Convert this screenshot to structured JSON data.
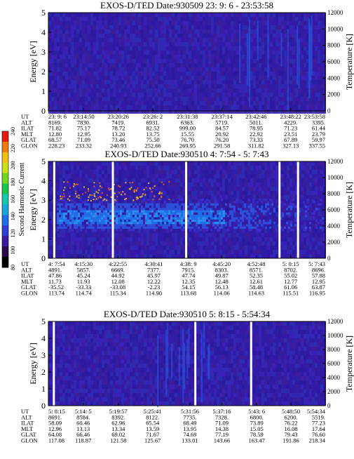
{
  "colorbar": {
    "label": "Second Harmonic Current",
    "ticks": [
      "80",
      "100",
      "120",
      "140",
      "160",
      "180",
      "200",
      "220",
      "240"
    ],
    "colors": [
      "#000000",
      "#2a0a4a",
      "#3b1a9e",
      "#2e3fd6",
      "#1f6fe8",
      "#1aa6d8",
      "#12c9b0",
      "#18c84a",
      "#6fd81e",
      "#c8e014",
      "#f2c010",
      "#f07a10",
      "#e81a10"
    ]
  },
  "chart_data": [
    {
      "type": "heatmap",
      "title": "EXOS-D/TED Date:930509 23: 9: 6 - 23:53:58",
      "ylabel": "Energy [eV]",
      "y2label": "Temperature [K]",
      "ylim": [
        0,
        5
      ],
      "y2lim": [
        0,
        12000
      ],
      "yticks": [
        "0",
        "1",
        "2",
        "3",
        "4",
        "5"
      ],
      "y2ticks": [
        "0",
        "2000",
        "4000",
        "6000",
        "8000",
        "10000",
        "12000"
      ],
      "row_labels": [
        "UT",
        "ALT",
        "ILAT",
        "MLT",
        "GLAT",
        "GLON"
      ],
      "columns": [
        [
          "23: 9: 6",
          "8169.",
          "71.82",
          "12.80",
          "68.57",
          "228.23"
        ],
        [
          "23:14:50",
          "7830.",
          "75.17",
          "12.95",
          "71.09",
          "233.32"
        ],
        [
          "23:20:26",
          "7419.",
          "78.72",
          "13.20",
          "73.46",
          "240.93"
        ],
        [
          "23:26: 2",
          "6931.",
          "82.52",
          "13.75",
          "75.50",
          "252.66"
        ],
        [
          "23:31:38",
          "6363.",
          "999.00",
          "15.55",
          "76.70",
          "269.95"
        ],
        [
          "23:37:14",
          "5719.",
          "84.57",
          "20.92",
          "76.20",
          "291.58"
        ],
        [
          "23:42:46",
          "5011.",
          "78.95",
          "22.92",
          "73.33",
          "311.82"
        ],
        [
          "23:48:22",
          "4229.",
          "71.23",
          "23.51",
          "67.89",
          "327.13"
        ],
        [
          "23:53:58",
          "3395.",
          "61.44",
          "23.79",
          "59.97",
          "337.55"
        ]
      ],
      "gaps_ut": []
    },
    {
      "type": "heatmap",
      "title": "EXOS-D/TED Date:930510 4: 7:54 - 5: 7:43",
      "ylabel": "Energy [eV]",
      "y2label": "Temperature [K]",
      "ylim": [
        0,
        5
      ],
      "y2lim": [
        0,
        12000
      ],
      "yticks": [
        "0",
        "1",
        "2",
        "3",
        "4",
        "5"
      ],
      "y2ticks": [
        "0",
        "2000",
        "4000",
        "6000",
        "8000",
        "10000",
        "12000"
      ],
      "row_labels": [
        "UT",
        "ALT",
        "ILAT",
        "MLT",
        "GLAT",
        "GLON"
      ],
      "columns": [
        [
          "4: 7:54",
          "4891.",
          "47.86",
          "11.73",
          "-35.52",
          "113.74"
        ],
        [
          "4:15:30",
          "5857.",
          "45.24",
          "11.93",
          "-33.33",
          "114.74"
        ],
        [
          "4:22:55",
          "6669.",
          "44.92",
          "12.08",
          "-33.08",
          "115.34"
        ],
        [
          "4:30:41",
          "7377.",
          "45.97",
          "12.22",
          "-2.23",
          "114.90"
        ],
        [
          "4:38: 9",
          "7915.",
          "47.74",
          "12.35",
          "54.15",
          "113.68"
        ],
        [
          "4:45:20",
          "8303.",
          "49.87",
          "12.48",
          "56.13",
          "114.06"
        ],
        [
          "4:52:48",
          "8571.",
          "52.35",
          "12.61",
          "58.48",
          "114.63"
        ],
        [
          "5: 0:15",
          "8702.",
          "55.02",
          "12.77",
          "61.06",
          "115.51"
        ],
        [
          "5: 7:43",
          "8696.",
          "57.88",
          "12.95",
          "63.87",
          "116.95"
        ]
      ],
      "gaps_ut": [
        "4: 9:10",
        "4:21:50",
        "4:37:40",
        "4:57:50",
        "5: 1:50"
      ]
    },
    {
      "type": "heatmap",
      "title": "EXOS-D/TED Date:930510 5: 8:15 - 5:54:34",
      "ylabel": "Energy [eV]",
      "y2label": "Temperature [K]",
      "ylim": [
        0,
        5
      ],
      "y2lim": [
        0,
        12000
      ],
      "yticks": [
        "0",
        "1",
        "2",
        "3",
        "4",
        "5"
      ],
      "y2ticks": [
        "0",
        "2000",
        "4000",
        "6000",
        "8000",
        "10000",
        "12000"
      ],
      "row_labels": [
        "UT",
        "ALT",
        "ILAT",
        "MLT",
        "GLAT",
        "GLON"
      ],
      "columns": [
        [
          "5: 8:15",
          "8691.",
          "58.09",
          "12.96",
          "64.08",
          "117.08"
        ],
        [
          "5:14: 5",
          "8584.",
          "60.46",
          "13.13",
          "66.46",
          "118.87"
        ],
        [
          "5:19:57",
          "8392.",
          "62.96",
          "13.34",
          "69.02",
          "121.58"
        ],
        [
          "5:25:41",
          "8122.",
          "65.54",
          "13.59",
          "71.67",
          "125.67"
        ],
        [
          "5:31:56",
          "7735.",
          "68.49",
          "13.95",
          "74.69",
          "133.01"
        ],
        [
          "5:37:16",
          "7328.",
          "71.09",
          "14.38",
          "77.19",
          "143.66"
        ],
        [
          "5:43: 6",
          "6800.",
          "73.89",
          "15.05",
          "78.59",
          "163.47"
        ],
        [
          "5:48:50",
          "6200.",
          "76.22",
          "16.08",
          "79.43",
          "191.86"
        ],
        [
          "5:54:34",
          "5519.",
          "77.23",
          "17.64",
          "76.60",
          "218.34"
        ]
      ],
      "gaps_ut": [
        "5: 9:10",
        "5:32:50",
        "5:42:10"
      ]
    }
  ]
}
